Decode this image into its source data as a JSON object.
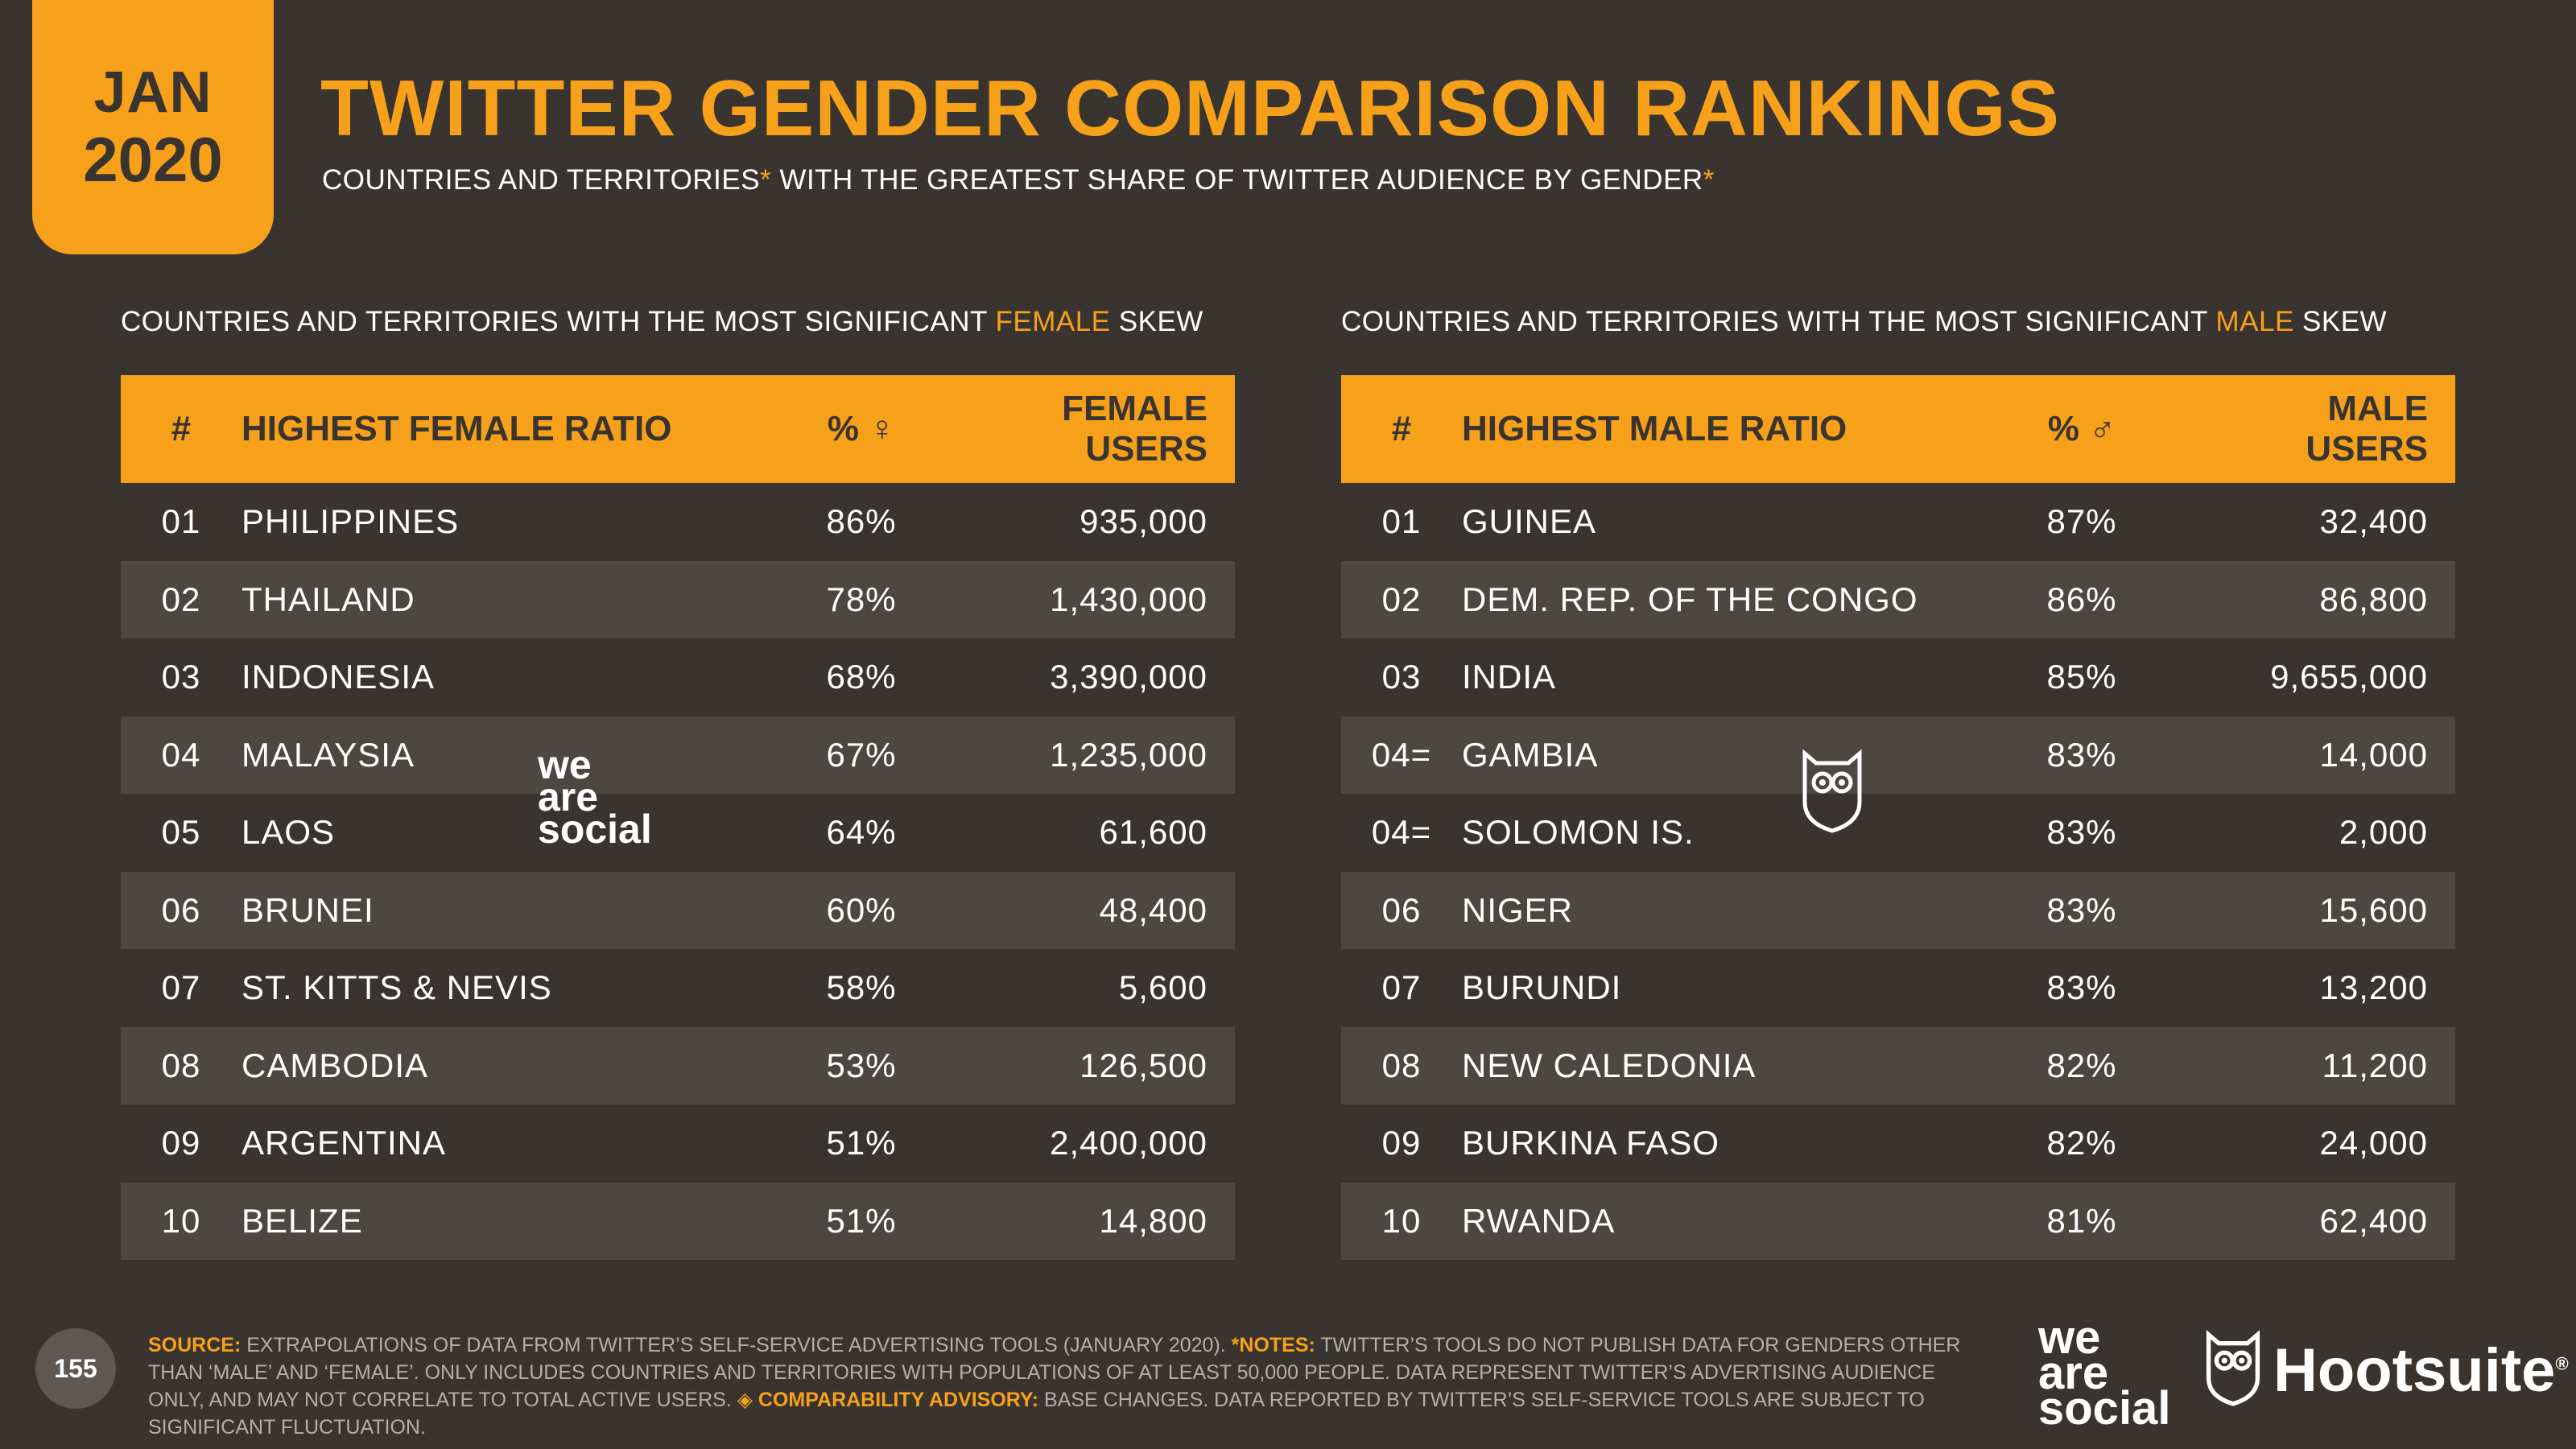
{
  "badge": {
    "month": "JAN",
    "year": "2020"
  },
  "title": "TWITTER GENDER COMPARISON RANKINGS",
  "subtitle": {
    "part1": "COUNTRIES AND TERRITORIES",
    "star": "*",
    "part2": " WITH THE GREATEST SHARE OF TWITTER AUDIENCE BY GENDER"
  },
  "female": {
    "heading": {
      "pre": "COUNTRIES AND TERRITORIES WITH THE MOST SIGNIFICANT ",
      "hl": "FEMALE",
      "post": " SKEW"
    },
    "headers": {
      "num": "#",
      "name": "HIGHEST FEMALE RATIO",
      "pct": "% ♀",
      "users": "FEMALE USERS"
    },
    "rows": [
      {
        "num": "01",
        "name": "PHILIPPINES",
        "pct": "86%",
        "users": "935,000"
      },
      {
        "num": "02",
        "name": "THAILAND",
        "pct": "78%",
        "users": "1,430,000"
      },
      {
        "num": "03",
        "name": "INDONESIA",
        "pct": "68%",
        "users": "3,390,000"
      },
      {
        "num": "04",
        "name": "MALAYSIA",
        "pct": "67%",
        "users": "1,235,000"
      },
      {
        "num": "05",
        "name": "LAOS",
        "pct": "64%",
        "users": "61,600"
      },
      {
        "num": "06",
        "name": "BRUNEI",
        "pct": "60%",
        "users": "48,400"
      },
      {
        "num": "07",
        "name": "ST. KITTS & NEVIS",
        "pct": "58%",
        "users": "5,600"
      },
      {
        "num": "08",
        "name": "CAMBODIA",
        "pct": "53%",
        "users": "126,500"
      },
      {
        "num": "09",
        "name": "ARGENTINA",
        "pct": "51%",
        "users": "2,400,000"
      },
      {
        "num": "10",
        "name": "BELIZE",
        "pct": "51%",
        "users": "14,800"
      }
    ]
  },
  "male": {
    "heading": {
      "pre": "COUNTRIES AND TERRITORIES WITH THE MOST SIGNIFICANT ",
      "hl": "MALE",
      "post": " SKEW"
    },
    "headers": {
      "num": "#",
      "name": "HIGHEST MALE RATIO",
      "pct": "% ♂",
      "users": "MALE USERS"
    },
    "rows": [
      {
        "num": "01",
        "name": "GUINEA",
        "pct": "87%",
        "users": "32,400"
      },
      {
        "num": "02",
        "name": "DEM. REP. OF THE CONGO",
        "pct": "86%",
        "users": "86,800"
      },
      {
        "num": "03",
        "name": "INDIA",
        "pct": "85%",
        "users": "9,655,000"
      },
      {
        "num": "04=",
        "name": "GAMBIA",
        "pct": "83%",
        "users": "14,000"
      },
      {
        "num": "04=",
        "name": "SOLOMON IS.",
        "pct": "83%",
        "users": "2,000"
      },
      {
        "num": "06",
        "name": "NIGER",
        "pct": "83%",
        "users": "15,600"
      },
      {
        "num": "07",
        "name": "BURUNDI",
        "pct": "83%",
        "users": "13,200"
      },
      {
        "num": "08",
        "name": "NEW CALEDONIA",
        "pct": "82%",
        "users": "11,200"
      },
      {
        "num": "09",
        "name": "BURKINA FASO",
        "pct": "82%",
        "users": "24,000"
      },
      {
        "num": "10",
        "name": "RWANDA",
        "pct": "81%",
        "users": "62,400"
      }
    ]
  },
  "watermark": {
    "was_1": "we",
    "was_2": "are",
    "was_3": "social"
  },
  "page_number": "155",
  "footer": {
    "source_key": "SOURCE:",
    "source_text": " EXTRAPOLATIONS OF DATA FROM TWITTER’S SELF-SERVICE ADVERTISING TOOLS (JANUARY 2020). ",
    "notes_key": "*NOTES:",
    "notes_text": " TWITTER’S TOOLS DO NOT PUBLISH DATA FOR GENDERS OTHER THAN ‘MALE’ AND ‘FEMALE’. ONLY INCLUDES COUNTRIES AND TERRITORIES WITH POPULATIONS OF AT LEAST 50,000 PEOPLE. DATA REPRESENT TWITTER’S ADVERTISING AUDIENCE ONLY, AND MAY NOT CORRELATE TO TOTAL ACTIVE USERS. ",
    "advisory_key": "◈ COMPARABILITY ADVISORY:",
    "advisory_text": " BASE CHANGES. DATA REPORTED BY TWITTER’S SELF-SERVICE TOOLS ARE SUBJECT TO SIGNIFICANT FLUCTUATION."
  },
  "brands": {
    "was_1": "we",
    "was_2": "are",
    "was_3": "social",
    "hootsuite": "Hootsuite",
    "reg": "®"
  },
  "colors": {
    "accent": "#f7a11a",
    "background": "#3a3430",
    "row_alt": "#4d4742"
  }
}
